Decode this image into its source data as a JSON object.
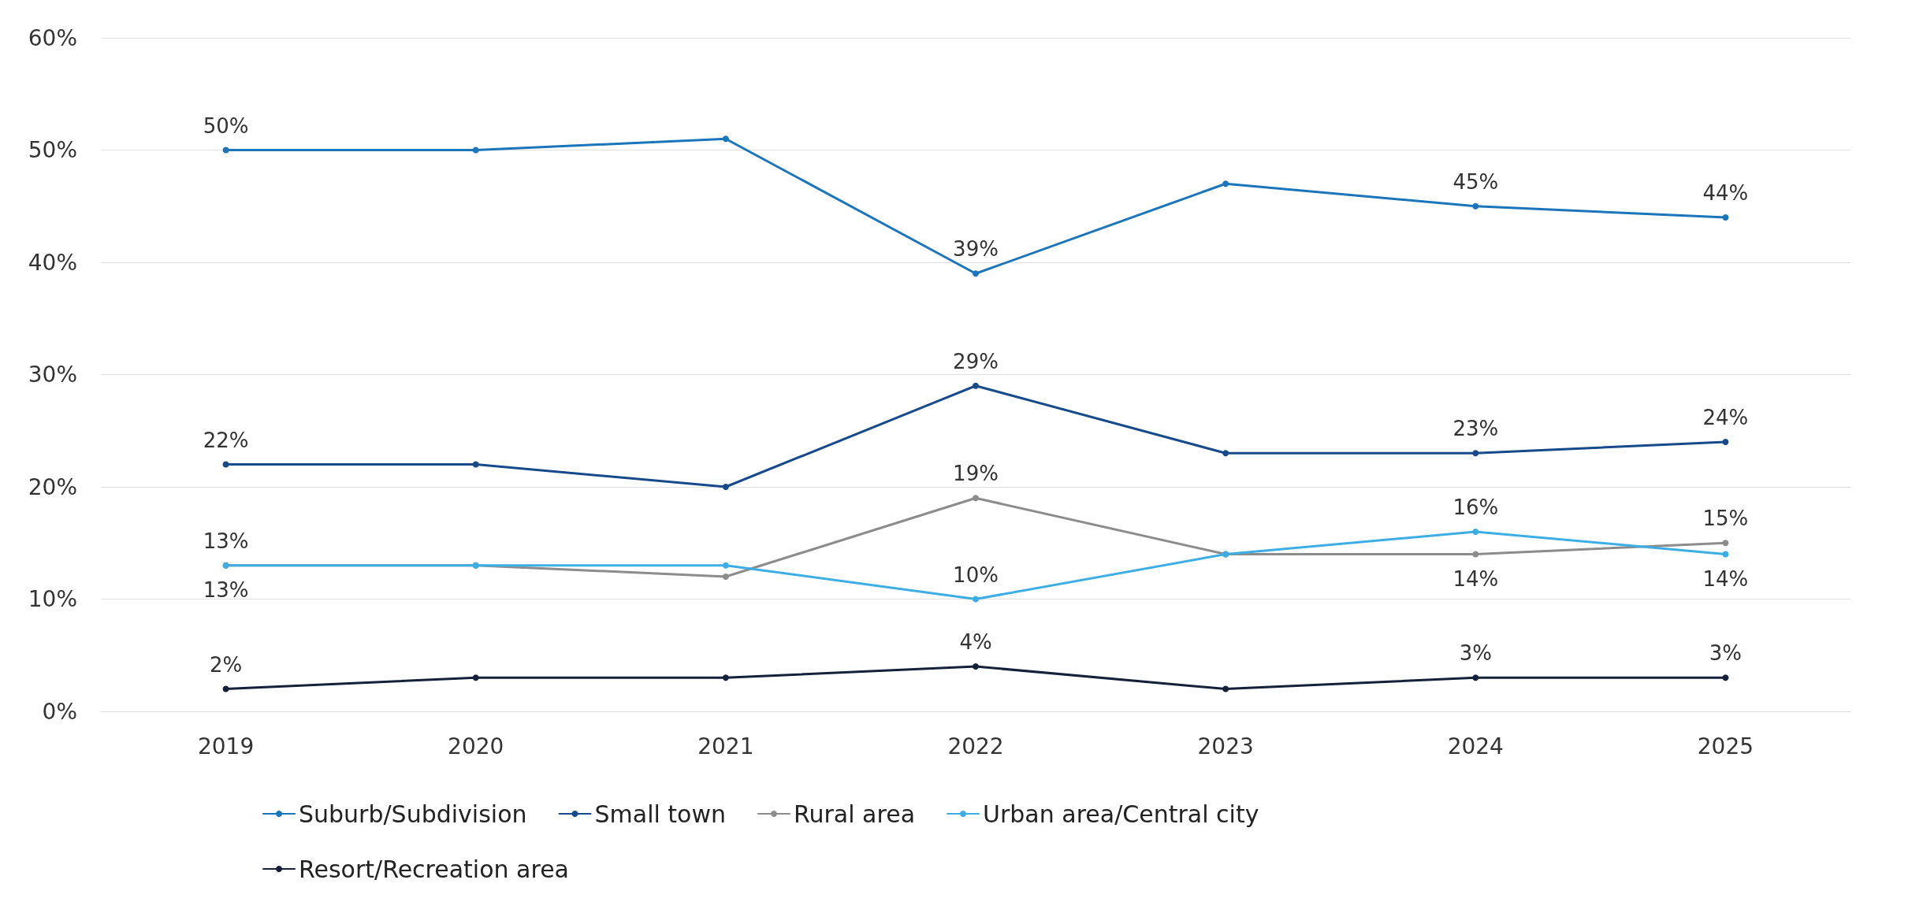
{
  "chart_data": {
    "type": "line",
    "categories": [
      "2019",
      "2020",
      "2021",
      "2022",
      "2023",
      "2024",
      "2025"
    ],
    "ylim": [
      0,
      60
    ],
    "yticks": [
      {
        "value": 0,
        "label": "0%"
      },
      {
        "value": 10,
        "label": "10%"
      },
      {
        "value": 20,
        "label": "20%"
      },
      {
        "value": 30,
        "label": "30%"
      },
      {
        "value": 40,
        "label": "40%"
      },
      {
        "value": 50,
        "label": "50%"
      },
      {
        "value": 60,
        "label": "60%"
      }
    ],
    "grid": "y",
    "legend": "bottom",
    "marker": "circle",
    "line_style": "solid",
    "series": [
      {
        "name": "Suburb/Subdivision",
        "color": "#1b75bb",
        "values": [
          50,
          50,
          51,
          39,
          47,
          45,
          44
        ],
        "value_labels": [
          "50%",
          null,
          null,
          "39%",
          null,
          "45%",
          "44%"
        ]
      },
      {
        "name": "Small town",
        "color": "#164a8a",
        "values": [
          22,
          22,
          20,
          29,
          23,
          23,
          24
        ],
        "value_labels": [
          "22%",
          null,
          null,
          "29%",
          null,
          "23%",
          "24%"
        ]
      },
      {
        "name": "Rural area",
        "color": "#8c8c8c",
        "values": [
          13,
          13,
          12,
          19,
          14,
          14,
          15
        ],
        "value_labels": [
          "13%",
          null,
          null,
          "19%",
          null,
          "14%",
          "15%"
        ]
      },
      {
        "name": "Urban area/Central city",
        "color": "#3daee5",
        "values": [
          13,
          13,
          13,
          10,
          14,
          16,
          14
        ],
        "value_labels": [
          "13%",
          null,
          null,
          "10%",
          null,
          "16%",
          "14%"
        ]
      },
      {
        "name": "Resort/Recreation area",
        "color": "#15213b",
        "values": [
          2,
          3,
          3,
          4,
          2,
          3,
          3
        ],
        "value_labels": [
          "2%",
          null,
          null,
          "4%",
          null,
          "3%",
          "3%"
        ]
      }
    ]
  }
}
